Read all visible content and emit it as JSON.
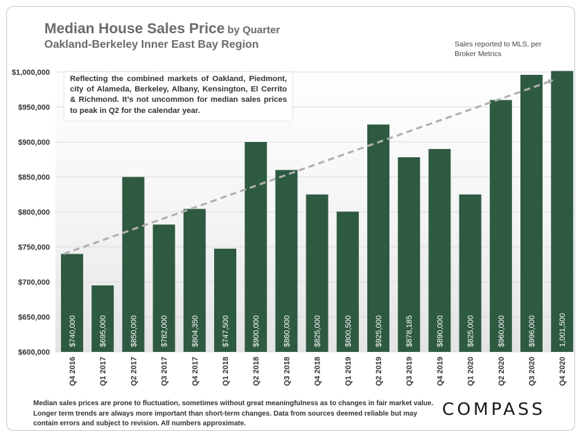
{
  "title": "Median House Sales Price",
  "title_suffix": "by Quarter",
  "subtitle": "Oakland-Berkeley Inner East Bay Region",
  "source_note": "Sales reported to MLS, per Broker Metrics",
  "annotation": "Reflecting the combined markets of Oakland, Piedmont, city of Alameda, Berkeley, Albany, Kensington, El Cerrito & Richmond. It’s not uncommon for median sales prices to peak in Q2 for the calendar year.",
  "footer": "Median sales prices are prone to fluctuation, sometimes without great meaningfulness as to changes in fair market value. Longer term trends are always more important than short-term changes. Data from sources deemed reliable but may contain errors and subject to revision. All numbers approximate.",
  "logo": "COMPASS",
  "colors": {
    "bar": "#2e5a42",
    "trend": "#b0b0b0",
    "axis_text": "#333333"
  },
  "chart_data": {
    "type": "bar",
    "categories": [
      "Q4 2016",
      "Q1 2017",
      "Q2 2017",
      "Q3 2017",
      "Q4 2017",
      "Q1 2018",
      "Q2 2018",
      "Q3 2018",
      "Q4 2018",
      "Q1 2019",
      "Q2 2019",
      "Q3 2019",
      "Q4 2019",
      "Q1 2020",
      "Q2 2020",
      "Q3 2020",
      "Q4 2020"
    ],
    "values": [
      740000,
      695000,
      850000,
      782000,
      804350,
      747500,
      900000,
      860000,
      825000,
      800500,
      925000,
      878185,
      890000,
      825000,
      960000,
      996000,
      1001500
    ],
    "data_labels": [
      "$740,000",
      "$695,000",
      "$850,000",
      "$782,000",
      "$804,350",
      "$747,500",
      "$900,000",
      "$860,000",
      "$825,000",
      "$800,500",
      "$925,000",
      "$878,185",
      "$890,000",
      "$825,000",
      "$960,000",
      "$996,000",
      "1,001,500"
    ],
    "y_ticks": [
      600000,
      650000,
      700000,
      750000,
      800000,
      850000,
      900000,
      950000,
      1000000
    ],
    "y_tick_labels": [
      "$600,000",
      "$650,000",
      "$700,000",
      "$750,000",
      "$800,000",
      "$850,000",
      "$900,000",
      "$950,000",
      "$1,000,000"
    ],
    "ylim": [
      600000,
      1000000
    ],
    "trendline": {
      "style": "dashed",
      "arrow": true,
      "start_value": 740000,
      "end_value": 988000
    },
    "grid": true,
    "legend": "none"
  }
}
